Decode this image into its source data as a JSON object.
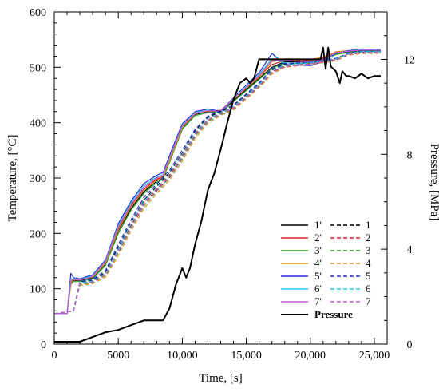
{
  "chart_data": {
    "type": "line",
    "title": "",
    "xlabel": "Time, [s]",
    "ylabel": "Temperature, [°C]",
    "y2label": "Pressure, [MPa]",
    "xlim": [
      0,
      26000
    ],
    "ylim": [
      0,
      600
    ],
    "y2lim": [
      0,
      14
    ],
    "x_ticks": [
      0,
      5000,
      10000,
      15000,
      20000,
      25000
    ],
    "x_tick_labels": [
      "0",
      "5000",
      "10,000",
      "15,000",
      "20,000",
      "25,000"
    ],
    "y_ticks": [
      0,
      100,
      200,
      300,
      400,
      500,
      600
    ],
    "y_tick_labels": [
      "0",
      "100",
      "200",
      "300",
      "400",
      "500",
      "600"
    ],
    "y2_ticks": [
      0,
      4,
      8,
      12
    ],
    "y2_tick_labels": [
      "0",
      "4",
      "8",
      "12"
    ],
    "grid": false,
    "legend_position": "bottom-right",
    "legend_rows": [
      {
        "label_solid": "1'",
        "label_dashed": "1",
        "color": "#000000"
      },
      {
        "label_solid": "2'",
        "label_dashed": "2",
        "color": "#d62728"
      },
      {
        "label_solid": "3'",
        "label_dashed": "3",
        "color": "#2ca02c"
      },
      {
        "label_solid": "4'",
        "label_dashed": "4",
        "color": "#d98c1a"
      },
      {
        "label_solid": "5'",
        "label_dashed": "5",
        "color": "#1f2fd6"
      },
      {
        "label_solid": "6'",
        "label_dashed": "6",
        "color": "#2ec7e6"
      },
      {
        "label_solid": "7'",
        "label_dashed": "7",
        "color": "#c85ad6"
      }
    ],
    "pressure_label": "Pressure",
    "series": [
      {
        "name": "1'",
        "style": "solid",
        "color": "#000000",
        "x": [
          0,
          1000,
          1300,
          1500,
          2000,
          3000,
          4000,
          5000,
          6000,
          7000,
          8000,
          8500,
          9000,
          9500,
          10000,
          11000,
          12000,
          13000,
          14000,
          15000,
          16000,
          17000,
          18000,
          20000,
          21000,
          22000,
          23000,
          24000,
          25500
        ],
        "y": [
          55,
          55,
          110,
          115,
          115,
          120,
          145,
          205,
          245,
          275,
          295,
          300,
          330,
          360,
          390,
          415,
          420,
          420,
          440,
          460,
          480,
          500,
          510,
          510,
          515,
          525,
          528,
          530,
          530
        ]
      },
      {
        "name": "2'",
        "style": "solid",
        "color": "#d62728",
        "x": [
          0,
          1000,
          1300,
          1500,
          2000,
          3000,
          4000,
          5000,
          6000,
          7000,
          8000,
          8500,
          9000,
          9500,
          10000,
          11000,
          12000,
          13000,
          14000,
          15000,
          16000,
          17000,
          18000,
          20000,
          21000,
          22000,
          23000,
          24000,
          25500
        ],
        "y": [
          55,
          55,
          112,
          117,
          117,
          122,
          148,
          210,
          250,
          280,
          298,
          303,
          333,
          363,
          393,
          417,
          422,
          422,
          443,
          462,
          483,
          505,
          512,
          512,
          517,
          527,
          529,
          531,
          531
        ]
      },
      {
        "name": "3'",
        "style": "solid",
        "color": "#2ca02c",
        "x": [
          0,
          1000,
          1300,
          1500,
          2000,
          3000,
          4000,
          5000,
          6000,
          7000,
          8000,
          8500,
          9000,
          9500,
          10000,
          11000,
          12000,
          13000,
          14000,
          15000,
          16000,
          17000,
          18000,
          20000,
          21000,
          22000,
          23000,
          24000,
          25500
        ],
        "y": [
          55,
          55,
          108,
          113,
          113,
          118,
          142,
          200,
          242,
          272,
          292,
          298,
          328,
          358,
          388,
          413,
          418,
          418,
          438,
          458,
          478,
          498,
          508,
          508,
          513,
          523,
          527,
          529,
          529
        ]
      },
      {
        "name": "4'",
        "style": "solid",
        "color": "#d98c1a",
        "x": [
          0,
          1000,
          1300,
          1500,
          2000,
          3000,
          4000,
          5000,
          6000,
          7000,
          8000,
          8500,
          9000,
          9500,
          10000,
          11000,
          12000,
          13000,
          14000,
          15000,
          16000,
          17000,
          18000,
          20000,
          21000,
          22000,
          23000,
          24000,
          25500
        ],
        "y": [
          55,
          55,
          110,
          116,
          116,
          121,
          146,
          207,
          248,
          278,
          296,
          301,
          331,
          361,
          391,
          416,
          421,
          421,
          442,
          462,
          482,
          510,
          515,
          514,
          518,
          528,
          530,
          532,
          532
        ]
      },
      {
        "name": "5'",
        "style": "solid",
        "color": "#1f2fd6",
        "x": [
          0,
          1000,
          1300,
          1500,
          2000,
          3000,
          4000,
          5000,
          6000,
          7000,
          8000,
          8500,
          9000,
          9500,
          10000,
          11000,
          12000,
          13000,
          14000,
          15000,
          16000,
          17000,
          18000,
          20000,
          21000,
          22000,
          23000,
          24000,
          25500
        ],
        "y": [
          55,
          55,
          128,
          120,
          118,
          125,
          152,
          218,
          258,
          290,
          305,
          310,
          340,
          370,
          398,
          420,
          425,
          420,
          445,
          468,
          490,
          525,
          505,
          503,
          510,
          525,
          530,
          533,
          532
        ]
      },
      {
        "name": "6'",
        "style": "solid",
        "color": "#2ec7e6",
        "x": [
          0,
          1000,
          1300,
          1500,
          2000,
          3000,
          4000,
          5000,
          6000,
          7000,
          8000,
          8500,
          9000,
          9500,
          10000,
          11000,
          12000,
          13000,
          14000,
          15000,
          16000,
          17000,
          18000,
          20000,
          21000,
          22000,
          23000,
          24000,
          25500
        ],
        "y": [
          55,
          55,
          118,
          118,
          117,
          123,
          150,
          214,
          255,
          286,
          302,
          306,
          336,
          366,
          395,
          418,
          423,
          418,
          444,
          465,
          487,
          515,
          508,
          506,
          512,
          526,
          529,
          532,
          531
        ]
      },
      {
        "name": "7'",
        "style": "solid",
        "color": "#c85ad6",
        "x": [
          0,
          1000,
          1300,
          1500,
          2000,
          3000,
          4000,
          5000,
          6000,
          7000,
          8000,
          8500,
          9000,
          9500,
          10000,
          11000,
          12000,
          13000,
          14000,
          15000,
          16000,
          17000,
          18000,
          20000,
          21000,
          22000,
          23000,
          24000,
          25500
        ],
        "y": [
          55,
          55,
          115,
          117,
          116,
          122,
          149,
          212,
          252,
          283,
          300,
          305,
          335,
          365,
          394,
          417,
          422,
          420,
          443,
          464,
          485,
          512,
          512,
          510,
          514,
          526,
          529,
          531,
          531
        ]
      },
      {
        "name": "1",
        "style": "dashed",
        "color": "#000000",
        "x": [
          0,
          1500,
          2000,
          3000,
          4000,
          5000,
          6000,
          7000,
          8000,
          9000,
          10000,
          11000,
          12000,
          13000,
          14000,
          15000,
          16000,
          17000,
          18000,
          20000,
          22000,
          23000,
          24000,
          25500
        ],
        "y": [
          55,
          60,
          112,
          115,
          130,
          175,
          220,
          260,
          285,
          310,
          345,
          385,
          410,
          420,
          430,
          450,
          470,
          495,
          505,
          508,
          515,
          525,
          528,
          528
        ]
      },
      {
        "name": "2",
        "style": "dashed",
        "color": "#d62728",
        "x": [
          0,
          1500,
          2000,
          3000,
          4000,
          5000,
          6000,
          7000,
          8000,
          9000,
          10000,
          11000,
          12000,
          13000,
          14000,
          15000,
          16000,
          17000,
          18000,
          20000,
          22000,
          23000,
          24000,
          25500
        ],
        "y": [
          55,
          60,
          110,
          113,
          127,
          170,
          215,
          255,
          280,
          305,
          340,
          380,
          405,
          417,
          427,
          447,
          467,
          492,
          503,
          507,
          514,
          524,
          527,
          527
        ]
      },
      {
        "name": "3",
        "style": "dashed",
        "color": "#2ca02c",
        "x": [
          0,
          1500,
          2000,
          3000,
          4000,
          5000,
          6000,
          7000,
          8000,
          9000,
          10000,
          11000,
          12000,
          13000,
          14000,
          15000,
          16000,
          17000,
          18000,
          20000,
          22000,
          23000,
          24000,
          25500
        ],
        "y": [
          55,
          60,
          108,
          111,
          124,
          165,
          210,
          250,
          276,
          300,
          335,
          376,
          402,
          415,
          425,
          445,
          465,
          490,
          502,
          506,
          513,
          523,
          526,
          526
        ]
      },
      {
        "name": "4",
        "style": "dashed",
        "color": "#d98c1a",
        "x": [
          0,
          1500,
          2000,
          3000,
          4000,
          5000,
          6000,
          7000,
          8000,
          9000,
          10000,
          11000,
          12000,
          13000,
          14000,
          15000,
          16000,
          17000,
          18000,
          20000,
          22000,
          23000,
          24000,
          25500
        ],
        "y": [
          55,
          60,
          106,
          109,
          121,
          160,
          205,
          245,
          272,
          296,
          330,
          372,
          399,
          413,
          423,
          443,
          463,
          488,
          500,
          505,
          512,
          522,
          525,
          525
        ]
      },
      {
        "name": "5",
        "style": "dashed",
        "color": "#1f2fd6",
        "x": [
          0,
          1500,
          2000,
          3000,
          4000,
          5000,
          6000,
          7000,
          8000,
          9000,
          10000,
          11000,
          12000,
          13000,
          14000,
          15000,
          16000,
          17000,
          18000,
          20000,
          22000,
          23000,
          24000,
          25500
        ],
        "y": [
          55,
          60,
          113,
          117,
          133,
          180,
          225,
          265,
          289,
          314,
          350,
          388,
          412,
          422,
          432,
          452,
          472,
          497,
          507,
          509,
          516,
          526,
          529,
          529
        ]
      },
      {
        "name": "6",
        "style": "dashed",
        "color": "#2ec7e6",
        "x": [
          0,
          1500,
          2000,
          3000,
          4000,
          5000,
          6000,
          7000,
          8000,
          9000,
          10000,
          11000,
          12000,
          13000,
          14000,
          15000,
          16000,
          17000,
          18000,
          20000,
          22000,
          23000,
          24000,
          25500
        ],
        "y": [
          55,
          60,
          111,
          114,
          128,
          172,
          218,
          258,
          283,
          308,
          343,
          383,
          408,
          418,
          429,
          449,
          469,
          494,
          504,
          508,
          515,
          525,
          528,
          528
        ]
      },
      {
        "name": "7",
        "style": "dashed",
        "color": "#c85ad6",
        "x": [
          0,
          1500,
          2000,
          3000,
          4000,
          5000,
          6000,
          7000,
          8000,
          9000,
          10000,
          11000,
          12000,
          13000,
          14000,
          15000,
          16000,
          17000,
          18000,
          20000,
          22000,
          23000,
          24000,
          25500
        ],
        "y": [
          55,
          60,
          109,
          112,
          125,
          168,
          212,
          252,
          278,
          302,
          338,
          378,
          404,
          416,
          426,
          446,
          466,
          491,
          501,
          506,
          513,
          523,
          526,
          526
        ]
      },
      {
        "name": "Pressure",
        "style": "solid",
        "axis": "right",
        "color": "#000000",
        "x": [
          0,
          2000,
          3000,
          4000,
          5000,
          6000,
          7000,
          8000,
          8500,
          9000,
          9500,
          10000,
          10300,
          10600,
          11000,
          11500,
          12000,
          12500,
          13000,
          13500,
          14000,
          14500,
          15000,
          15300,
          15600,
          16000,
          16200,
          17000,
          18000,
          19000,
          20000,
          20800,
          21000,
          21200,
          21400,
          21600,
          22000,
          22300,
          22500,
          22800,
          23000,
          23500,
          24000,
          24500,
          25000,
          25500
        ],
        "y": [
          0.1,
          0.1,
          0.3,
          0.5,
          0.6,
          0.8,
          1.0,
          1.0,
          1.0,
          1.5,
          2.5,
          3.2,
          2.8,
          3.2,
          4.2,
          5.2,
          6.5,
          7.2,
          8.2,
          9.3,
          10.3,
          11.0,
          11.2,
          11.0,
          11.2,
          12.0,
          12.0,
          12.0,
          12.0,
          12.0,
          12.0,
          12.0,
          12.5,
          11.6,
          12.5,
          11.7,
          11.5,
          11.0,
          11.5,
          11.3,
          11.3,
          11.2,
          11.4,
          11.2,
          11.3,
          11.3
        ]
      }
    ]
  }
}
